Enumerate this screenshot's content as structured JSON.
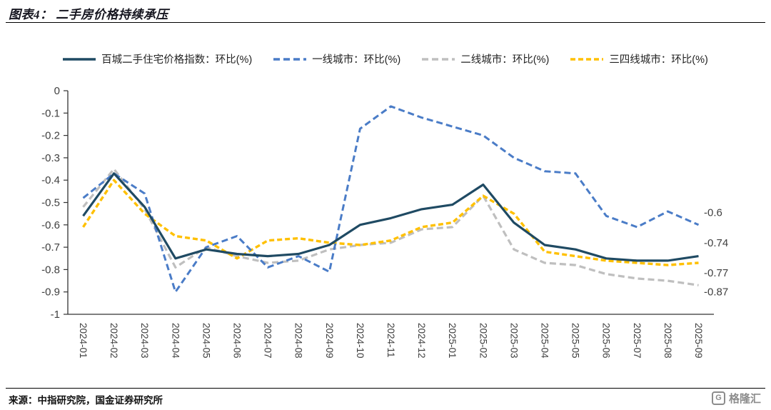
{
  "header": {
    "title": "图表4： 二手房价格持续承压"
  },
  "footer": {
    "source": "来源：中指研究院，国金证券研究所",
    "logo_letter": "G",
    "logo_text": "格隆汇"
  },
  "chart_data": {
    "type": "line",
    "title": "二手房价格持续承压",
    "x": [
      "2024-01",
      "2024-02",
      "2024-03",
      "2024-04",
      "2024-05",
      "2024-06",
      "2024-07",
      "2024-08",
      "2024-09",
      "2024-10",
      "2024-11",
      "2024-12",
      "2025-01",
      "2025-02",
      "2025-03",
      "2025-04",
      "2025-05",
      "2025-06",
      "2025-07",
      "2025-08",
      "2025-09"
    ],
    "ylim": [
      -1,
      0
    ],
    "y_ticks": [
      0,
      -0.1,
      -0.2,
      -0.3,
      -0.4,
      -0.5,
      -0.6,
      -0.7,
      -0.8,
      -0.9,
      -1
    ],
    "grid": false,
    "legend_position": "top",
    "axis_color": "#333333",
    "tick_label_color": "#404040",
    "end_label_color": "#3f3f3f",
    "series": [
      {
        "key": "composite",
        "name": "百城二手住宅价格指数：环比(%)",
        "color": "#1f4a63",
        "line_style": "solid",
        "dash_pattern": "",
        "width": 3.2,
        "z": 4,
        "values": [
          -0.56,
          -0.37,
          -0.52,
          -0.75,
          -0.71,
          -0.73,
          -0.74,
          -0.73,
          -0.69,
          -0.6,
          -0.57,
          -0.53,
          -0.51,
          -0.42,
          -0.59,
          -0.69,
          -0.71,
          -0.75,
          -0.76,
          -0.76,
          -0.74
        ],
        "end_label": "-0.74",
        "end_label_value": -0.68
      },
      {
        "key": "tier1",
        "name": "一线城市：环比(%)",
        "color": "#4a7cc7",
        "line_style": "dashed",
        "dash_pattern": "9 5",
        "width": 3,
        "z": 3,
        "values": [
          -0.48,
          -0.37,
          -0.46,
          -0.9,
          -0.7,
          -0.65,
          -0.79,
          -0.74,
          -0.81,
          -0.17,
          -0.07,
          -0.12,
          -0.16,
          -0.2,
          -0.3,
          -0.36,
          -0.37,
          -0.56,
          -0.61,
          -0.54,
          -0.6
        ],
        "end_label": "-0.6",
        "end_label_value": -0.545
      },
      {
        "key": "tier2",
        "name": "二线城市：环比(%)",
        "color": "#bfbfbf",
        "line_style": "dashed",
        "dash_pattern": "9 5",
        "width": 3.2,
        "z": 1,
        "values": [
          -0.52,
          -0.35,
          -0.53,
          -0.79,
          -0.7,
          -0.74,
          -0.77,
          -0.76,
          -0.71,
          -0.69,
          -0.68,
          -0.62,
          -0.61,
          -0.47,
          -0.71,
          -0.77,
          -0.78,
          -0.82,
          -0.84,
          -0.85,
          -0.87
        ],
        "end_label": "-0.87",
        "end_label_value": -0.9
      },
      {
        "key": "tier34",
        "name": "三四线城市：环比(%)",
        "color": "#ffc000",
        "line_style": "dashed",
        "dash_pattern": "7 4",
        "width": 3.4,
        "z": 2,
        "values": [
          -0.61,
          -0.4,
          -0.55,
          -0.65,
          -0.67,
          -0.75,
          -0.67,
          -0.66,
          -0.68,
          -0.69,
          -0.67,
          -0.61,
          -0.59,
          -0.47,
          -0.55,
          -0.72,
          -0.74,
          -0.76,
          -0.77,
          -0.78,
          -0.77
        ],
        "end_label": "-0.77",
        "end_label_value": -0.815
      }
    ]
  }
}
